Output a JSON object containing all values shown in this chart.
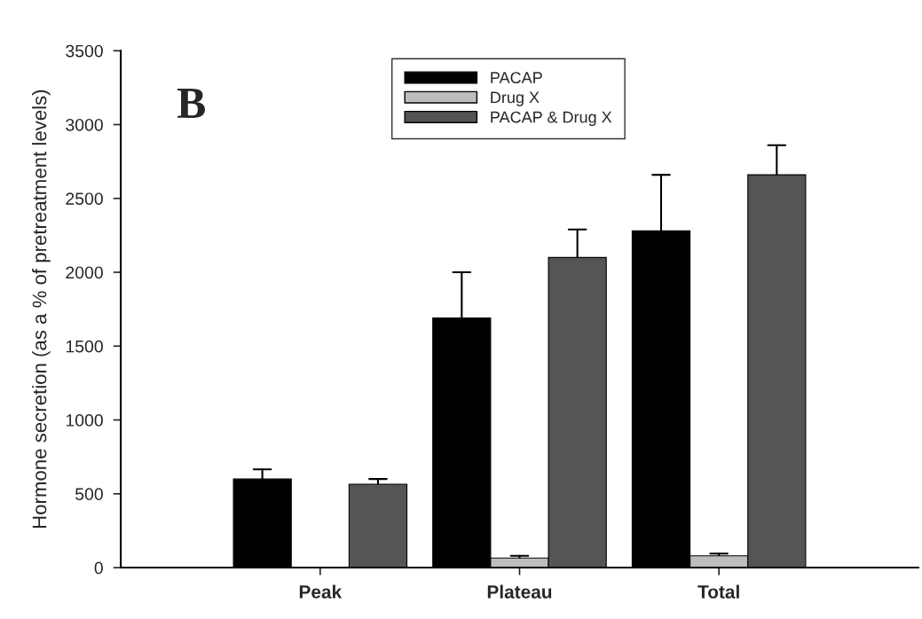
{
  "chart_data": {
    "type": "bar",
    "categories": [
      "Peak",
      "Plateau",
      "Total"
    ],
    "ylabel": "Hormone secretion (as a % of pretreatment levels)",
    "annotations": [
      "B"
    ],
    "ylim": [
      0,
      3500
    ],
    "yticks": [
      0,
      500,
      1000,
      1500,
      2000,
      2500,
      3000,
      3500
    ],
    "grid": false,
    "legend": "top",
    "series": [
      {
        "name": "PACAP",
        "color": "#000000",
        "values": [
          600,
          1690,
          2280
        ],
        "errors": [
          [
            600,
            665
          ],
          [
            1690,
            2000
          ],
          [
            2280,
            2660
          ]
        ]
      },
      {
        "name": "Drug X",
        "color": "#bdbdbd",
        "values": [
          null,
          65,
          80
        ],
        "errors": [
          null,
          [
            65,
            80
          ],
          [
            80,
            95
          ]
        ]
      },
      {
        "name": "PACAP & Drug X",
        "color": "#555555",
        "values": [
          565,
          2100,
          2660
        ],
        "errors": [
          [
            565,
            600
          ],
          [
            2100,
            2290
          ],
          [
            2660,
            2860
          ]
        ]
      }
    ]
  }
}
